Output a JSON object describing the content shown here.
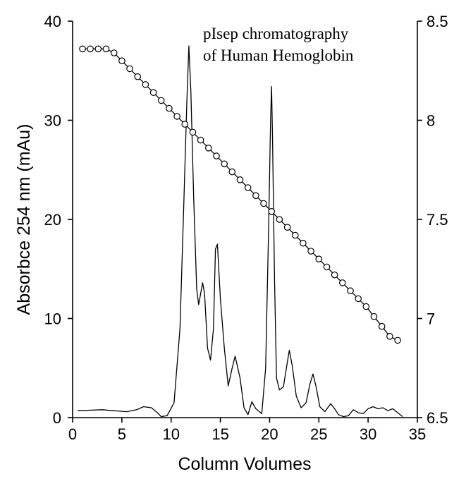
{
  "chart_data": {
    "type": "line",
    "title_line1": "pIsep chromatography",
    "title_line2": "of Human Hemoglobin",
    "xlabel": "Column Volumes",
    "ylabel": "Absorbce 254 nm (mAu)",
    "y2label": "",
    "xlim": [
      0,
      35
    ],
    "ylim": [
      0,
      40
    ],
    "y2lim": [
      6.5,
      8.5
    ],
    "x_ticks": [
      0,
      5,
      10,
      15,
      20,
      25,
      30,
      35
    ],
    "y_ticks": [
      0,
      10,
      20,
      30,
      40
    ],
    "y2_ticks": [
      "6.5",
      "7",
      "7.5",
      "8",
      "8.5"
    ],
    "grid": false,
    "series": [
      {
        "axis": "left",
        "style": "line",
        "x": [
          0.5,
          3,
          5.5,
          6.5,
          7.2,
          8,
          8.6,
          9,
          9.6,
          10.3,
          10.9,
          11.3,
          11.6,
          11.8,
          12,
          12.3,
          12.6,
          12.8,
          13,
          13.2,
          13.4,
          13.7,
          14,
          14.3,
          14.5,
          14.7,
          15,
          15.4,
          15.8,
          16.2,
          16.5,
          17,
          17.4,
          17.8,
          18.2,
          18.6,
          19.2,
          19.6,
          19.9,
          20.1,
          20.2,
          20.3,
          20.5,
          20.7,
          21,
          21.4,
          21.8,
          22,
          22.3,
          22.7,
          23.2,
          23.7,
          24.1,
          24.4,
          24.7,
          25.1,
          25.6,
          26.2,
          26.6,
          27,
          27.5,
          28,
          28.5,
          29,
          29.5,
          30,
          30.5,
          31,
          31.5,
          32,
          32.5,
          33,
          33.5
        ],
        "values": [
          0.7,
          0.8,
          0.6,
          0.8,
          1.1,
          1.0,
          0.5,
          0.1,
          0.2,
          1.5,
          9,
          22,
          32,
          37.5,
          33,
          22,
          13,
          11.4,
          12.5,
          13.6,
          12.5,
          7,
          5.8,
          9,
          17,
          17.5,
          12,
          7,
          3.2,
          5,
          6.2,
          4,
          1,
          0.3,
          1.6,
          0.9,
          0.4,
          5,
          19,
          30,
          33.4,
          28,
          14,
          4,
          2.8,
          3.1,
          5.6,
          6.8,
          5.2,
          2.2,
          1.0,
          1.5,
          3.4,
          4.4,
          3.2,
          1.1,
          0.6,
          1.4,
          0.9,
          0.3,
          0.1,
          0.2,
          0.8,
          0.5,
          0.4,
          0.9,
          1.1,
          0.9,
          1.0,
          0.7,
          0.9,
          0.5,
          0.1
        ]
      },
      {
        "axis": "right",
        "style": "line-marker",
        "x": [
          1,
          1.8,
          2.6,
          3.4,
          4.2,
          5,
          5.8,
          6.6,
          7.4,
          8.2,
          9,
          9.8,
          10.6,
          11.4,
          12.2,
          13,
          13.8,
          14.6,
          15.4,
          16.2,
          17,
          17.8,
          18.6,
          19.4,
          20.2,
          21,
          21.8,
          22.6,
          23.4,
          24.2,
          25,
          25.8,
          26.6,
          27.4,
          28.2,
          29,
          29.8,
          30.6,
          31.4,
          32.2,
          33
        ],
        "values": [
          8.36,
          8.36,
          8.36,
          8.36,
          8.34,
          8.3,
          8.26,
          8.22,
          8.18,
          8.14,
          8.1,
          8.06,
          8.02,
          7.98,
          7.94,
          7.9,
          7.86,
          7.82,
          7.78,
          7.74,
          7.7,
          7.66,
          7.62,
          7.58,
          7.54,
          7.5,
          7.46,
          7.42,
          7.38,
          7.34,
          7.3,
          7.26,
          7.22,
          7.18,
          7.14,
          7.1,
          7.06,
          7.01,
          6.96,
          6.91,
          6.89
        ]
      }
    ]
  }
}
